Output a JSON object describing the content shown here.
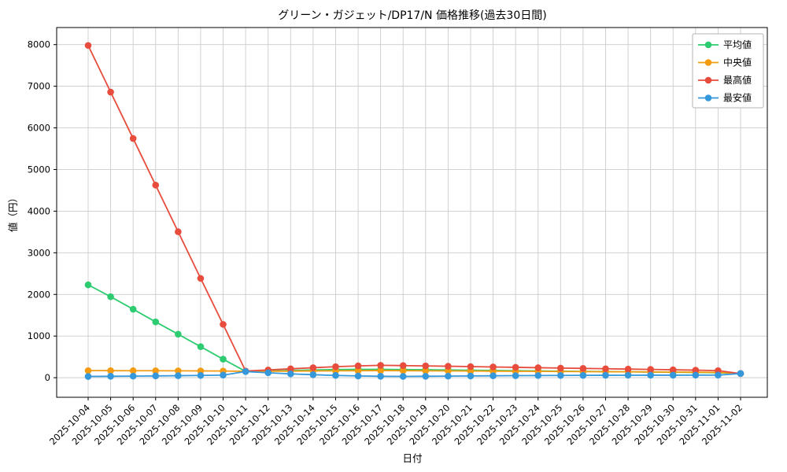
{
  "figure": {
    "background": "#ffffff",
    "frame_color": "#000000",
    "grid_color": "#cccccc"
  },
  "chart_data": {
    "type": "line",
    "title": "グリーン・ガジェット/DP17/N 価格推移(過去30日間)",
    "xlabel": "日付",
    "ylabel": "値（円）",
    "ylim": [
      -470,
      8410
    ],
    "yticks": [
      0,
      1000,
      2000,
      3000,
      4000,
      5000,
      6000,
      7000,
      8000
    ],
    "grid": true,
    "legend_position": "upper right",
    "categories": [
      "2025-10-04",
      "2025-10-05",
      "2025-10-06",
      "2025-10-07",
      "2025-10-08",
      "2025-10-09",
      "2025-10-10",
      "2025-10-11",
      "2025-10-12",
      "2025-10-13",
      "2025-10-14",
      "2025-10-15",
      "2025-10-16",
      "2025-10-17",
      "2025-10-18",
      "2025-10-19",
      "2025-10-20",
      "2025-10-21",
      "2025-10-22",
      "2025-10-23",
      "2025-10-24",
      "2025-10-25",
      "2025-10-26",
      "2025-10-27",
      "2025-10-28",
      "2025-10-29",
      "2025-10-30",
      "2025-10-31",
      "2025-11-01",
      "2025-11-02"
    ],
    "series": [
      {
        "id": "average",
        "name": "平均値",
        "color": "#2ecc71",
        "values": [
          2230,
          1945,
          1645,
          1340,
          1045,
          745,
          445,
          150,
          162,
          175,
          186,
          195,
          200,
          200,
          196,
          191,
          186,
          180,
          174,
          168,
          162,
          156,
          151,
          146,
          141,
          136,
          131,
          126,
          119,
          100
        ]
      },
      {
        "id": "median",
        "name": "中央値",
        "color": "#f39c12",
        "values": [
          170,
          169,
          168,
          167,
          165,
          163,
          160,
          152,
          154,
          158,
          162,
          166,
          169,
          171,
          169,
          166,
          163,
          160,
          157,
          154,
          151,
          149,
          146,
          143,
          141,
          138,
          135,
          132,
          128,
          100
        ]
      },
      {
        "id": "max",
        "name": "最高値",
        "color": "#e74c3c",
        "values": [
          7980,
          6860,
          5745,
          4625,
          3505,
          2385,
          1280,
          160,
          186,
          214,
          240,
          264,
          284,
          297,
          291,
          283,
          275,
          267,
          258,
          249,
          240,
          231,
          223,
          215,
          207,
          199,
          190,
          181,
          170,
          100
        ]
      },
      {
        "id": "min",
        "name": "最安値",
        "color": "#3498db",
        "values": [
          30,
          34,
          38,
          43,
          48,
          54,
          62,
          148,
          118,
          92,
          72,
          55,
          42,
          34,
          31,
          34,
          38,
          42,
          46,
          49,
          52,
          54,
          56,
          58,
          59,
          60,
          60,
          61,
          62,
          100
        ]
      }
    ]
  }
}
